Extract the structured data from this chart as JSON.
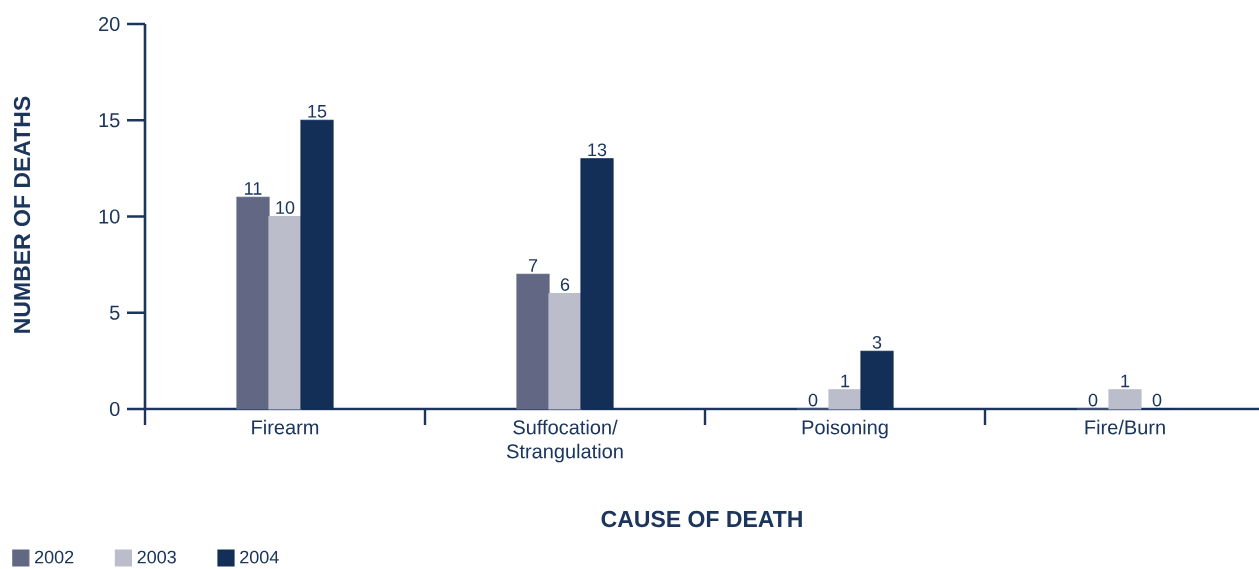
{
  "chart_data": {
    "type": "bar",
    "xlabel": "CAUSE OF DEATH",
    "ylabel": "NUMBER OF DEATHS",
    "categories": [
      "Firearm",
      "Suffocation/ Strangulation",
      "Poisoning",
      "Fire/Burn"
    ],
    "series": [
      {
        "name": "2002",
        "color": "#626884",
        "values": [
          11,
          7,
          0,
          0
        ]
      },
      {
        "name": "2003",
        "color": "#bbbdcb",
        "values": [
          10,
          6,
          1,
          1
        ]
      },
      {
        "name": "2004",
        "color": "#132f57",
        "values": [
          15,
          13,
          3,
          0
        ]
      }
    ],
    "ylim": [
      0,
      20
    ],
    "yticks": [
      0,
      5,
      10,
      15,
      20
    ],
    "data_labels": true,
    "legend": "bottom left"
  }
}
